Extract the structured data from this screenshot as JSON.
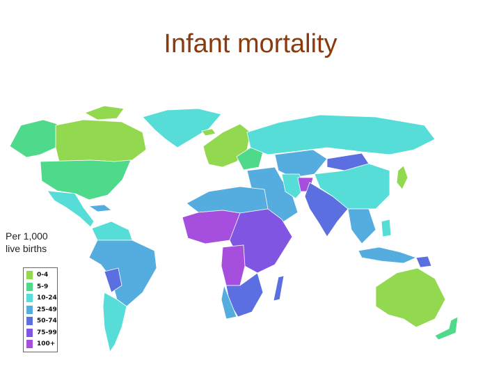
{
  "title": "Infant mortality",
  "unit_label": "Per 1,000 live births",
  "legend": [
    {
      "label": "0-4",
      "color": "#92d950"
    },
    {
      "label": "5-9",
      "color": "#4fd98a"
    },
    {
      "label": "10-24",
      "color": "#57ddd8"
    },
    {
      "label": "25-49",
      "color": "#55addf"
    },
    {
      "label": "50-74",
      "color": "#5b6fe0"
    },
    {
      "label": "75-99",
      "color": "#7f55e2"
    },
    {
      "label": "100+",
      "color": "#a64fde"
    }
  ]
}
